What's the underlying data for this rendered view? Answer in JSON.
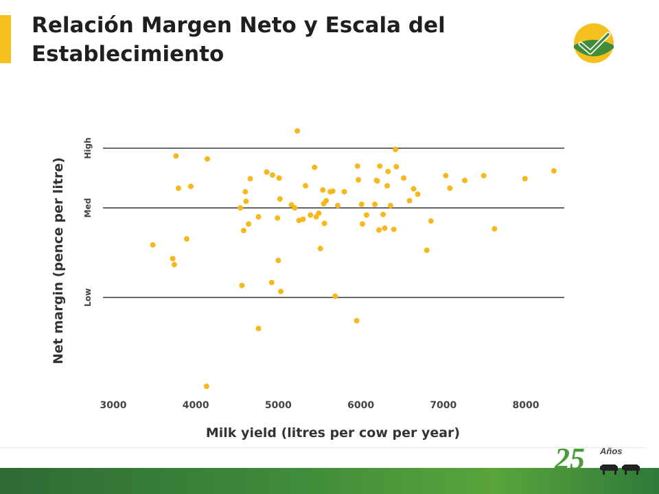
{
  "slide": {
    "title": "Relación Margen Neto y Escala del Establecimiento",
    "footer_number": "25",
    "footer_word": "Años"
  },
  "colors": {
    "accent": "#f5c01e",
    "points": "#f6b81c",
    "footer_green": "#3f8c3a"
  },
  "chart_data": {
    "type": "scatter",
    "title": "",
    "xlabel": "Milk yield (litres per cow per year)",
    "ylabel": "Net margin (pence per litre)",
    "xlim": [
      2800,
      8500
    ],
    "x_ticks": [
      "3000",
      "4000",
      "5000",
      "6000",
      "7000",
      "8000"
    ],
    "y_categories": [
      "High",
      "Med",
      "Low"
    ],
    "y_scale_note": "Reference lines at High = 1.0, Med = 0.0, Low = -1.5 (relative scale)",
    "ylim": [
      -3.05,
      1.35
    ],
    "grid": "horizontal reference lines at High, Med, Low",
    "points": [
      {
        "x": 3480,
        "y": -0.62
      },
      {
        "x": 3720,
        "y": -0.85
      },
      {
        "x": 3740,
        "y": -0.95
      },
      {
        "x": 3760,
        "y": 0.87
      },
      {
        "x": 3790,
        "y": 0.33
      },
      {
        "x": 3890,
        "y": -0.52
      },
      {
        "x": 3940,
        "y": 0.36
      },
      {
        "x": 4140,
        "y": 0.82
      },
      {
        "x": 4130,
        "y": -2.99
      },
      {
        "x": 4540,
        "y": 0.0
      },
      {
        "x": 4560,
        "y": -1.3
      },
      {
        "x": 4580,
        "y": -0.38
      },
      {
        "x": 4600,
        "y": 0.27
      },
      {
        "x": 4610,
        "y": 0.11
      },
      {
        "x": 4640,
        "y": -0.27
      },
      {
        "x": 4660,
        "y": 0.49
      },
      {
        "x": 4760,
        "y": -0.15
      },
      {
        "x": 4760,
        "y": -2.02
      },
      {
        "x": 4860,
        "y": 0.6
      },
      {
        "x": 4920,
        "y": -1.25
      },
      {
        "x": 4930,
        "y": 0.55
      },
      {
        "x": 4990,
        "y": -0.17
      },
      {
        "x": 5000,
        "y": -0.88
      },
      {
        "x": 5010,
        "y": 0.5
      },
      {
        "x": 5020,
        "y": 0.15
      },
      {
        "x": 5030,
        "y": -1.4
      },
      {
        "x": 5160,
        "y": 0.05
      },
      {
        "x": 5200,
        "y": 0.0
      },
      {
        "x": 5230,
        "y": 1.29
      },
      {
        "x": 5250,
        "y": -0.21
      },
      {
        "x": 5300,
        "y": -0.19
      },
      {
        "x": 5330,
        "y": 0.37
      },
      {
        "x": 5390,
        "y": -0.12
      },
      {
        "x": 5440,
        "y": 0.68
      },
      {
        "x": 5460,
        "y": -0.15
      },
      {
        "x": 5490,
        "y": -0.09
      },
      {
        "x": 5510,
        "y": -0.68
      },
      {
        "x": 5540,
        "y": 0.3
      },
      {
        "x": 5550,
        "y": 0.07
      },
      {
        "x": 5560,
        "y": -0.26
      },
      {
        "x": 5580,
        "y": 0.12
      },
      {
        "x": 5630,
        "y": 0.27
      },
      {
        "x": 5660,
        "y": 0.28
      },
      {
        "x": 5690,
        "y": -1.48
      },
      {
        "x": 5720,
        "y": 0.04
      },
      {
        "x": 5800,
        "y": 0.27
      },
      {
        "x": 5950,
        "y": -1.89
      },
      {
        "x": 5960,
        "y": 0.7
      },
      {
        "x": 5970,
        "y": 0.47
      },
      {
        "x": 6010,
        "y": 0.06
      },
      {
        "x": 6020,
        "y": -0.27
      },
      {
        "x": 6070,
        "y": -0.12
      },
      {
        "x": 6170,
        "y": 0.06
      },
      {
        "x": 6190,
        "y": 0.46
      },
      {
        "x": 6200,
        "y": 0.45
      },
      {
        "x": 6220,
        "y": -0.37
      },
      {
        "x": 6230,
        "y": 0.7
      },
      {
        "x": 6270,
        "y": -0.11
      },
      {
        "x": 6290,
        "y": -0.34
      },
      {
        "x": 6320,
        "y": 0.37
      },
      {
        "x": 6330,
        "y": 0.61
      },
      {
        "x": 6360,
        "y": 0.04
      },
      {
        "x": 6400,
        "y": -0.36
      },
      {
        "x": 6420,
        "y": 0.98
      },
      {
        "x": 6430,
        "y": 0.69
      },
      {
        "x": 6520,
        "y": 0.5
      },
      {
        "x": 6590,
        "y": 0.12
      },
      {
        "x": 6640,
        "y": 0.32
      },
      {
        "x": 6690,
        "y": 0.23
      },
      {
        "x": 6800,
        "y": -0.71
      },
      {
        "x": 6850,
        "y": -0.22
      },
      {
        "x": 7030,
        "y": 0.54
      },
      {
        "x": 7080,
        "y": 0.33
      },
      {
        "x": 7260,
        "y": 0.46
      },
      {
        "x": 7490,
        "y": 0.54
      },
      {
        "x": 7620,
        "y": -0.35
      },
      {
        "x": 7990,
        "y": 0.49
      },
      {
        "x": 8340,
        "y": 0.62
      }
    ]
  }
}
